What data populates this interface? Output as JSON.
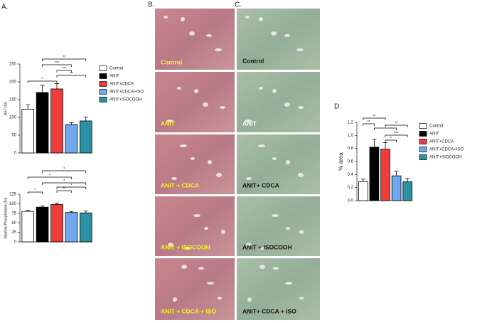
{
  "panel_labels": [
    "A.",
    "B.",
    "C.",
    "D."
  ],
  "histology": {
    "B": [
      "Control",
      "ANIT",
      "ANIT + CDCA",
      "ANIT + ISOCOOH",
      "ANIT + CDCA + ISO"
    ],
    "C": [
      "Control",
      "ANIT",
      "ANIT+ CDCA",
      "ANIT + ISOCOOH",
      "ANIT+ CDCA + ISO"
    ]
  },
  "chart_data": [
    {
      "type": "bar",
      "y_label": "AST (IU)",
      "categories": [
        "Control",
        "ANIT",
        "ANIT+CDCA",
        "ANIT+CDCA+ISO",
        "ANIT+ISOCOOH"
      ],
      "colors": [
        "#ffffff",
        "#000000",
        "#ee3b3b",
        "#6fa8ef",
        "#2a90a3"
      ],
      "values": [
        123,
        170,
        180,
        80,
        90
      ],
      "errors": [
        12,
        20,
        15,
        5,
        11
      ],
      "ylim": [
        0,
        250
      ],
      "yticks": [
        0,
        50,
        100,
        150,
        200,
        250
      ],
      "annotations": [
        "**",
        "***",
        "***",
        "**",
        "*"
      ]
    },
    {
      "type": "bar",
      "y_label": "Alkaline Phosphatase (IU)",
      "colors": [
        "#ffffff",
        "#000000",
        "#ee3b3b",
        "#6fa8ef",
        "#2a90a3"
      ],
      "values": [
        80,
        91,
        98,
        77,
        76
      ],
      "errors": [
        3,
        3,
        4,
        3,
        5
      ],
      "ylim": [
        0,
        125
      ],
      "yticks": [
        0,
        25,
        50,
        75,
        100,
        125
      ],
      "annotations": [
        "*",
        "*",
        "*",
        "*",
        "**",
        "*"
      ]
    },
    {
      "type": "bar",
      "y_label": "% area",
      "categories": [
        "Control",
        "ANIT",
        "ANIT+CDCA",
        "ANIT+CDCA+ISO",
        "ANIT+ISOCOOH"
      ],
      "colors": [
        "#ffffff",
        "#000000",
        "#ee3b3b",
        "#6fa8ef",
        "#2a90a3"
      ],
      "values": [
        0.29,
        0.82,
        0.79,
        0.38,
        0.29
      ],
      "errors": [
        0.04,
        0.12,
        0.1,
        0.07,
        0.05
      ],
      "ylim": [
        0,
        1.2
      ],
      "yticks": [
        {
          "value": 0,
          "label": "0.0"
        },
        0.2,
        0.4,
        0.6,
        0.8,
        {
          "value": 1,
          "label": "1.0"
        },
        1.2
      ],
      "annotations": [
        "**",
        "**",
        "*",
        "**",
        "***",
        "*"
      ]
    }
  ]
}
